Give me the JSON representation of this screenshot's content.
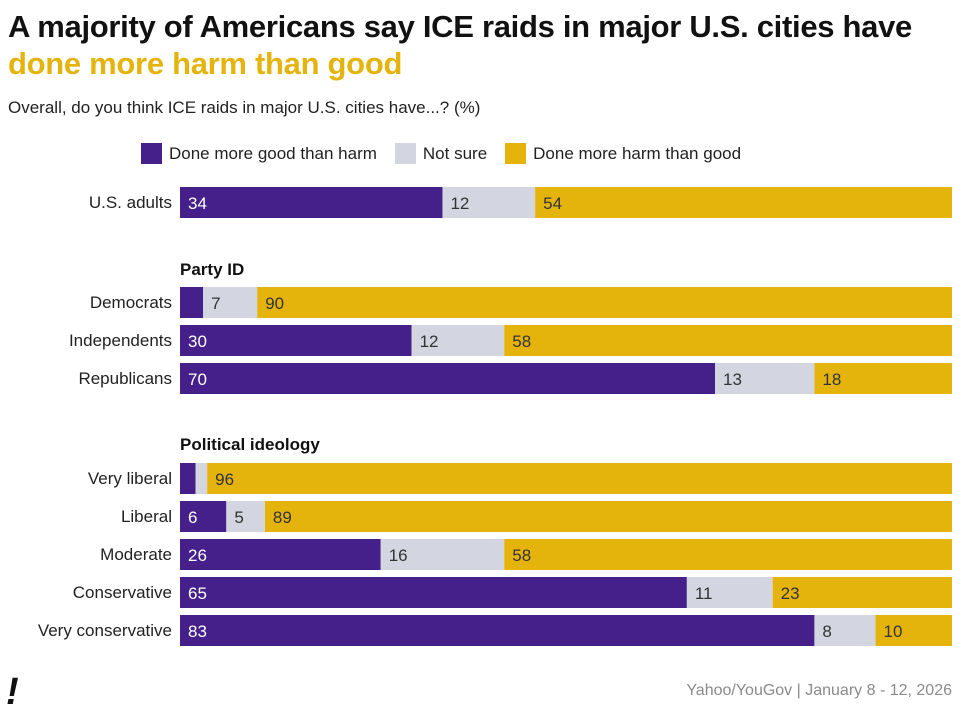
{
  "title": {
    "part1": "A majority of Americans say ICE raids in major U.S. cities have ",
    "highlight": "done more harm than good"
  },
  "subtitle": "Overall, do you think ICE raids in major U.S. cities have...? (%)",
  "legend": [
    {
      "label": "Done more good than harm",
      "color": "#46208a"
    },
    {
      "label": "Not sure",
      "color": "#d3d6e0"
    },
    {
      "label": "Done more harm than good",
      "color": "#e5b40c"
    }
  ],
  "chart_data": {
    "type": "bar",
    "orientation": "horizontal",
    "stacked": true,
    "xlim": [
      0,
      100
    ],
    "series": [
      {
        "name": "Done more good than harm",
        "color": "#46208a"
      },
      {
        "name": "Not sure",
        "color": "#d3d6e0"
      },
      {
        "name": "Done more harm than good",
        "color": "#e5b40c"
      }
    ],
    "groups": [
      {
        "heading": "",
        "rows": [
          {
            "label": "U.S. adults",
            "values": [
              34,
              12,
              54
            ],
            "labels": [
              "34",
              "12",
              "54"
            ]
          }
        ]
      },
      {
        "heading": "Party ID",
        "rows": [
          {
            "label": "Democrats",
            "values": [
              3,
              7,
              90
            ],
            "labels": [
              "",
              "7",
              "90"
            ]
          },
          {
            "label": "Independents",
            "values": [
              30,
              12,
              58
            ],
            "labels": [
              "30",
              "12",
              "58"
            ]
          },
          {
            "label": "Republicans",
            "values": [
              70,
              13,
              18
            ],
            "labels": [
              "70",
              "13",
              "18"
            ]
          }
        ]
      },
      {
        "heading": "Political ideology",
        "rows": [
          {
            "label": "Very liberal",
            "values": [
              2,
              1.5,
              96
            ],
            "labels": [
              "",
              "",
              "96"
            ]
          },
          {
            "label": "Liberal",
            "values": [
              6,
              5,
              89
            ],
            "labels": [
              "6",
              "5",
              "89"
            ]
          },
          {
            "label": "Moderate",
            "values": [
              26,
              16,
              58
            ],
            "labels": [
              "26",
              "16",
              "58"
            ]
          },
          {
            "label": "Conservative",
            "values": [
              65,
              11,
              23
            ],
            "labels": [
              "65",
              "11",
              "23"
            ]
          },
          {
            "label": "Very conservative",
            "values": [
              83,
              8,
              10
            ],
            "labels": [
              "83",
              "8",
              "10"
            ]
          }
        ]
      }
    ]
  },
  "footer": {
    "mark": "!",
    "source": "Yahoo/YouGov | January 8 - 12, 2026"
  }
}
